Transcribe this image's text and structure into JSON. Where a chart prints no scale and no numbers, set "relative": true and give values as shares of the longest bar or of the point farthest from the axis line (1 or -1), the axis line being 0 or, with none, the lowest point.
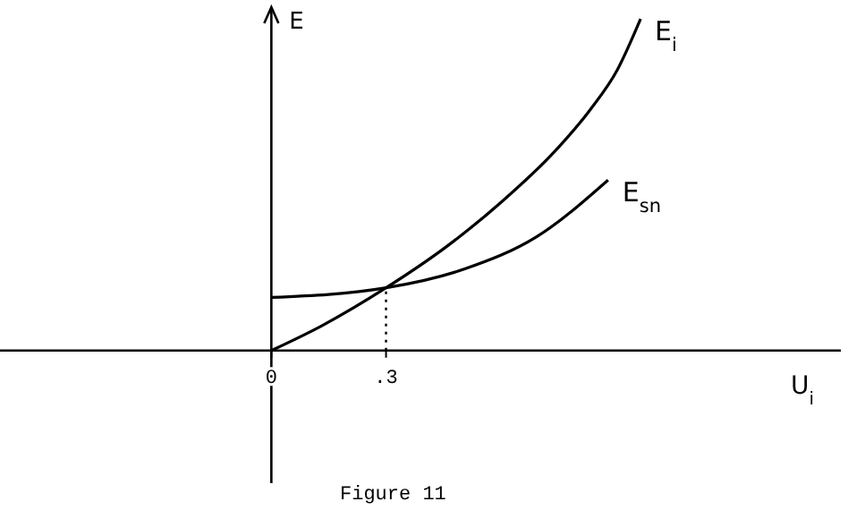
{
  "chart_data": {
    "type": "line",
    "relative": true,
    "xlabel": "U$_{i}$",
    "ylabel": "E",
    "annotations": [
      "Figure 11"
    ],
    "xlim": [
      -0.71,
      1.49
    ],
    "xticks": [
      0,
      {
        "value": 0.3,
        "label": ".3"
      }
    ],
    "marker": "none",
    "line_style": "solid",
    "tick_labels": "x",
    "ref_lines": [
      {
        "axis": "x",
        "value": 0.3,
        "line_style": "dotted",
        "color": "#000000"
      }
    ],
    "series": [
      {
        "name": "E$_{i}$",
        "color": "#000000",
        "x": [
          0,
          0.131,
          0.3,
          0.459,
          0.6,
          0.741,
          0.834,
          0.905,
          0.966
        ],
        "values": [
          0,
          0.074,
          0.189,
          0.314,
          0.446,
          0.6,
          0.726,
          0.846,
          1
        ]
      },
      {
        "name": "E$_{sn}$",
        "color": "#000000",
        "x": [
          0,
          0.3,
          0.506,
          0.694,
          0.881
        ],
        "values": [
          0.16,
          0.189,
          0.246,
          0.343,
          0.514
        ]
      }
    ]
  }
}
